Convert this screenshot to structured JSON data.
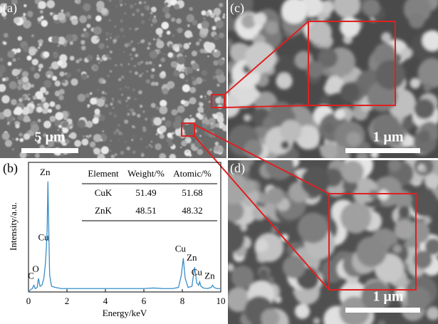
{
  "panels": {
    "a": {
      "label": "(a)",
      "scale_bar": "5 μm"
    },
    "c": {
      "label": "(c)",
      "scale_bar": "1 μm"
    },
    "d": {
      "label": "(d)",
      "scale_bar": "1 μm"
    }
  },
  "chart_data": {
    "type": "line",
    "panel_label": "(b)",
    "xlabel": "Energy/keV",
    "ylabel": "Intensity/a.u.",
    "xlim": [
      0,
      10
    ],
    "ylim": [
      0,
      115
    ],
    "xticks": [
      0,
      2,
      4,
      6,
      8,
      10
    ],
    "color": "#3a8ec8",
    "x": [
      0,
      0.1,
      0.2,
      0.28,
      0.35,
      0.45,
      0.52,
      0.6,
      0.7,
      0.8,
      0.88,
      0.93,
      0.97,
      1.01,
      1.05,
      1.1,
      1.2,
      1.4,
      1.7,
      2,
      2.5,
      3,
      3.5,
      4,
      4.5,
      5,
      5.5,
      6,
      6.5,
      7,
      7.5,
      7.8,
      7.95,
      8.05,
      8.15,
      8.3,
      8.5,
      8.64,
      8.75,
      8.85,
      8.9,
      8.97,
      9.1,
      9.3,
      9.5,
      9.57,
      9.65,
      9.8,
      10
    ],
    "values": [
      0,
      2,
      3,
      6,
      3,
      4,
      12,
      5,
      6,
      12,
      25,
      40,
      55,
      98,
      60,
      15,
      5,
      4,
      3,
      3,
      3,
      3,
      3,
      3,
      3,
      3,
      3,
      3,
      3.5,
      3,
      3,
      4,
      15,
      30,
      12,
      4,
      5,
      22,
      8,
      6,
      9,
      5,
      3.5,
      3,
      4,
      6,
      4,
      3,
      3
    ],
    "peaks": [
      {
        "label": "C",
        "x": 0.28,
        "y": 6
      },
      {
        "label": "O",
        "x": 0.52,
        "y": 12
      },
      {
        "label": "Cu",
        "x": 0.93,
        "y": 40
      },
      {
        "label": "Zn",
        "x": 1.01,
        "y": 98
      },
      {
        "label": "Cu",
        "x": 8.05,
        "y": 30
      },
      {
        "label": "Zn",
        "x": 8.64,
        "y": 22
      },
      {
        "label": "Cu",
        "x": 8.9,
        "y": 9
      },
      {
        "label": "Zn",
        "x": 9.57,
        "y": 6
      }
    ],
    "table": {
      "columns": [
        "Element",
        "Weight/%",
        "Atomic/%"
      ],
      "rows": [
        [
          "CuK",
          51.49,
          51.68
        ],
        [
          "ZnK",
          48.51,
          48.32
        ]
      ]
    }
  }
}
